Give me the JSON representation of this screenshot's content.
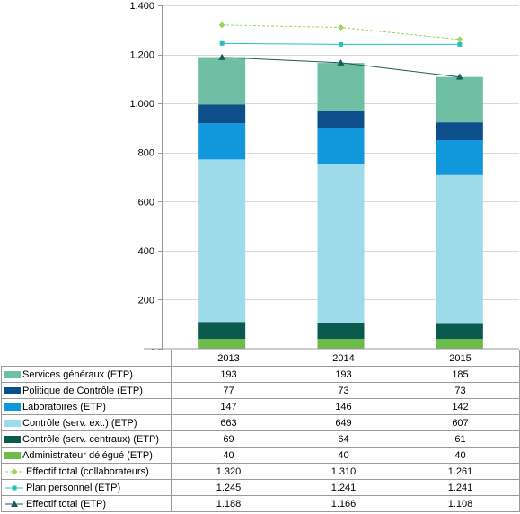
{
  "chart_data": {
    "type": "bar",
    "stacked": true,
    "categories": [
      "2013",
      "2014",
      "2015"
    ],
    "ylim": [
      0,
      1400
    ],
    "yticks": [
      "-",
      "200",
      "400",
      "600",
      "800",
      "1.000",
      "1.200",
      "1.400"
    ],
    "grid": true,
    "legend": "data table below chart",
    "series": [
      {
        "name": "Administrateur délégué (ETP)",
        "kind": "bar",
        "color": "#6dbb4a",
        "values": [
          40,
          40,
          40
        ],
        "labels": [
          "40",
          "40",
          "40"
        ]
      },
      {
        "name": "Contrôle (serv. centraux) (ETP)",
        "kind": "bar",
        "color": "#0a5a4e",
        "values": [
          69,
          64,
          61
        ],
        "labels": [
          "69",
          "64",
          "61"
        ]
      },
      {
        "name": "Contrôle (serv. ext.) (ETP)",
        "kind": "bar",
        "color": "#9ddbea",
        "values": [
          663,
          649,
          607
        ],
        "labels": [
          "663",
          "649",
          "607"
        ]
      },
      {
        "name": "Laboratoires (ETP)",
        "kind": "bar",
        "color": "#1198dc",
        "values": [
          147,
          146,
          142
        ],
        "labels": [
          "147",
          "146",
          "142"
        ]
      },
      {
        "name": "Politique de Contrôle (ETP)",
        "kind": "bar",
        "color": "#0d4f8b",
        "values": [
          77,
          73,
          73
        ],
        "labels": [
          "77",
          "73",
          "73"
        ]
      },
      {
        "name": "Services généraux (ETP)",
        "kind": "bar",
        "color": "#6fbfa5",
        "values": [
          193,
          193,
          185
        ],
        "labels": [
          "193",
          "193",
          "185"
        ]
      },
      {
        "name": "Effectif total (collaborateurs)",
        "kind": "line",
        "style": "dashed-diamond",
        "color": "#99d65c",
        "values": [
          1320,
          1310,
          1261
        ],
        "labels": [
          "1.320",
          "1.310",
          "1.261"
        ]
      },
      {
        "name": "Plan personnel (ETP)",
        "kind": "line",
        "style": "square",
        "color": "#2bbfbf",
        "values": [
          1245,
          1241,
          1241
        ],
        "labels": [
          "1.245",
          "1.241",
          "1.241"
        ]
      },
      {
        "name": "Effectif total (ETP)",
        "kind": "line",
        "style": "triangle",
        "color": "#1a5c5a",
        "values": [
          1188,
          1166,
          1108
        ],
        "labels": [
          "1.188",
          "1.166",
          "1.108"
        ]
      }
    ],
    "table_row_order": [
      5,
      4,
      3,
      2,
      1,
      0,
      6,
      7,
      8
    ]
  }
}
